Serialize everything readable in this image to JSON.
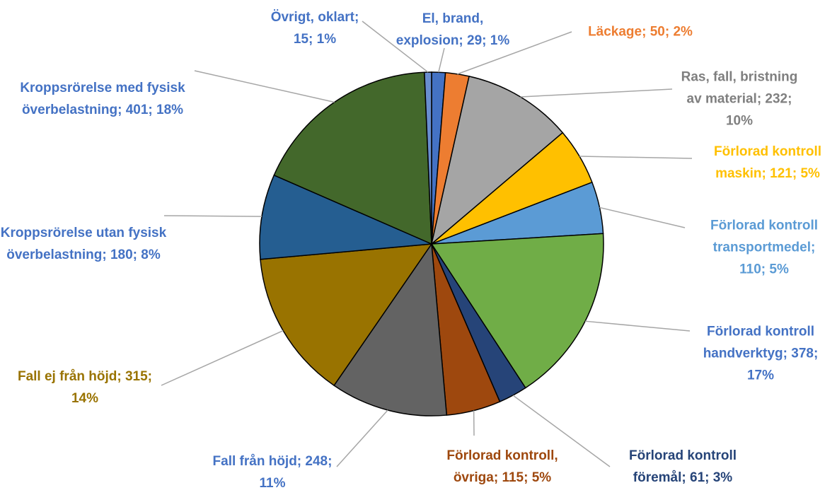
{
  "chart_data": {
    "type": "pie",
    "values": [
      29,
      50,
      232,
      121,
      110,
      378,
      61,
      115,
      248,
      315,
      180,
      401,
      15
    ],
    "value_labels": [
      "El, brand, explosion; 29; 1%",
      "Läckage; 50; 2%",
      "Ras, fall, bristning av material; 232; 10%",
      "Förlorad kontroll maskin; 121; 5%",
      "Förlorad kontroll transportmedel; 110; 5%",
      "Förlorad kontroll handverktyg; 378; 17%",
      "Förlorad kontroll föremål; 61; 3%",
      "Förlorad kontroll, övriga; 115; 5%",
      "Fall från höjd; 248; 11%",
      "Fall ej från höjd; 315; 14%",
      "Kroppsrörelse utan fysisk överbelastning; 180; 8%",
      "Kroppsrörelse med fysisk överbelastning; 401; 18%",
      "Övrigt, oklart; 15; 1%"
    ],
    "colors": [
      "#4472c4",
      "#ed7d31",
      "#a5a5a5",
      "#ffc000",
      "#5b9bd5",
      "#70ad47",
      "#264478",
      "#9e480e",
      "#636363",
      "#997300",
      "#255e91",
      "#43682b",
      "#698ed0"
    ],
    "label_colors": [
      "#4472c4",
      "#ed7d31",
      "#7f7f7f",
      "#ffc000",
      "#5b9bd5",
      "#4472c4",
      "#264478",
      "#9e480e",
      "#4472c4",
      "#997300",
      "#4472c4",
      "#4472c4",
      "#4472c4"
    ]
  }
}
